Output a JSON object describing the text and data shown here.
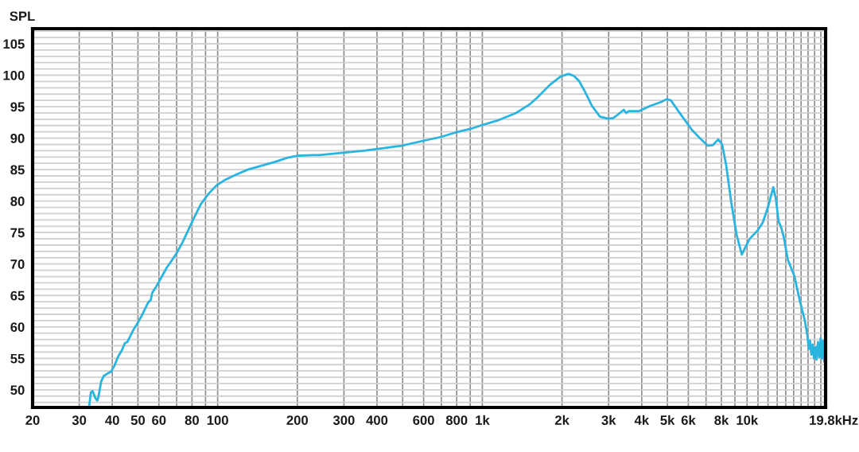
{
  "chart_data": {
    "type": "line",
    "ylabel": "SPL",
    "xlabel": "Hz",
    "log": "x",
    "grid": true,
    "xlim": [
      20,
      19800
    ],
    "ylim": [
      47.2,
      107.4
    ],
    "xticks": [
      20,
      30,
      40,
      50,
      60,
      {
        "value": 70,
        "label": null
      },
      80,
      {
        "value": 90,
        "label": null
      },
      100,
      200,
      300,
      400,
      {
        "value": 500,
        "label": null
      },
      600,
      {
        "value": 700,
        "label": null
      },
      800,
      {
        "value": 900,
        "label": null
      },
      {
        "value": 1000,
        "label": "1k"
      },
      {
        "value": 2000,
        "label": "2k"
      },
      {
        "value": 3000,
        "label": "3k"
      },
      {
        "value": 4000,
        "label": "4k"
      },
      {
        "value": 5000,
        "label": "5k"
      },
      {
        "value": 6000,
        "label": "6k"
      },
      {
        "value": 7000,
        "label": null
      },
      {
        "value": 8000,
        "label": "8k"
      },
      {
        "value": 9000,
        "label": null
      },
      {
        "value": 10000,
        "label": "10k"
      },
      {
        "value": 11000,
        "label": null
      },
      {
        "value": 12000,
        "label": null
      },
      {
        "value": 13000,
        "label": null
      },
      {
        "value": 14000,
        "label": null
      },
      {
        "value": 15000,
        "label": null
      },
      {
        "value": 16000,
        "label": null
      },
      {
        "value": 17000,
        "label": null
      },
      {
        "value": 18000,
        "label": null
      },
      {
        "value": 19000,
        "label": null
      },
      {
        "value": 19800,
        "label": "19.8k"
      }
    ],
    "yticks": [
      {
        "value": 48,
        "label": null
      },
      {
        "value": 49,
        "label": null
      },
      50,
      {
        "value": 51,
        "label": null
      },
      {
        "value": 52,
        "label": null
      },
      {
        "value": 53,
        "label": null
      },
      {
        "value": 54,
        "label": null
      },
      55,
      {
        "value": 56,
        "label": null
      },
      {
        "value": 57,
        "label": null
      },
      {
        "value": 58,
        "label": null
      },
      {
        "value": 59,
        "label": null
      },
      60,
      {
        "value": 61,
        "label": null
      },
      {
        "value": 62,
        "label": null
      },
      {
        "value": 63,
        "label": null
      },
      {
        "value": 64,
        "label": null
      },
      65,
      {
        "value": 66,
        "label": null
      },
      {
        "value": 67,
        "label": null
      },
      {
        "value": 68,
        "label": null
      },
      {
        "value": 69,
        "label": null
      },
      70,
      {
        "value": 71,
        "label": null
      },
      {
        "value": 72,
        "label": null
      },
      {
        "value": 73,
        "label": null
      },
      {
        "value": 74,
        "label": null
      },
      75,
      {
        "value": 76,
        "label": null
      },
      {
        "value": 77,
        "label": null
      },
      {
        "value": 78,
        "label": null
      },
      {
        "value": 79,
        "label": null
      },
      80,
      {
        "value": 81,
        "label": null
      },
      {
        "value": 82,
        "label": null
      },
      {
        "value": 83,
        "label": null
      },
      {
        "value": 84,
        "label": null
      },
      85,
      {
        "value": 86,
        "label": null
      },
      {
        "value": 87,
        "label": null
      },
      {
        "value": 88,
        "label": null
      },
      {
        "value": 89,
        "label": null
      },
      90,
      {
        "value": 91,
        "label": null
      },
      {
        "value": 92,
        "label": null
      },
      {
        "value": 93,
        "label": null
      },
      {
        "value": 94,
        "label": null
      },
      95,
      {
        "value": 96,
        "label": null
      },
      {
        "value": 97,
        "label": null
      },
      {
        "value": 98,
        "label": null
      },
      {
        "value": 99,
        "label": null
      },
      100,
      {
        "value": 101,
        "label": null
      },
      {
        "value": 102,
        "label": null
      },
      {
        "value": 103,
        "label": null
      },
      {
        "value": 104,
        "label": null
      },
      105,
      {
        "value": 106,
        "label": null
      },
      {
        "value": 107,
        "label": null
      }
    ],
    "x": [
      32.7,
      33.2,
      33.7,
      34.5,
      35.1,
      35.5,
      36.3,
      37.1,
      38.4,
      39.6,
      40.7,
      42.1,
      43.5,
      44.6,
      45.6,
      46.6,
      48.3,
      50,
      51.7,
      53.5,
      54.7,
      55.9,
      56.6,
      58.6,
      60.6,
      64.2,
      67.2,
      70.4,
      73.6,
      77.1,
      80.7,
      86.4,
      92.6,
      99.1,
      106,
      116,
      130,
      146,
      164,
      184,
      201,
      231,
      242,
      299,
      356,
      402,
      496,
      602,
      699,
      792,
      908,
      1002,
      1141,
      1340,
      1502,
      1608,
      1803,
      1975,
      2115,
      2214,
      2318,
      2426,
      2597,
      2782,
      2980,
      3119,
      3265,
      3418,
      3497,
      3577,
      3920,
      4295,
      4706,
      4981,
      5155,
      5521,
      6190,
      6628,
      7099,
      7432,
      7780,
      8051,
      8331,
      8721,
      9127,
      9553,
      9886,
      10230,
      10955,
      11470,
      12007,
      12566,
      12853,
      13151,
      13458,
      13770,
      14251,
      15087,
      15795,
      16529,
      16900,
      17100,
      17300,
      17500,
      17700,
      17900,
      18112,
      18300,
      18533,
      18750,
      18960,
      19150,
      19350,
      19550,
      19700,
      19800
    ],
    "series": [
      {
        "color": "#2ab4e0",
        "values": [
          47.3,
          49.6,
          49.8,
          48.7,
          48.3,
          49.0,
          51.3,
          52.2,
          52.6,
          52.9,
          53.8,
          55.3,
          56.3,
          57.4,
          57.6,
          58.4,
          59.7,
          60.7,
          61.8,
          63.1,
          63.9,
          64.3,
          65.4,
          66.4,
          67.5,
          69.4,
          70.6,
          71.9,
          73.4,
          75.2,
          77.0,
          79.5,
          81.2,
          82.5,
          83.3,
          84.1,
          85.0,
          85.6,
          86.2,
          86.9,
          87.2,
          87.3,
          87.3,
          87.7,
          88.0,
          88.3,
          88.8,
          89.6,
          90.2,
          90.9,
          91.5,
          92.1,
          92.8,
          94.0,
          95.3,
          96.4,
          98.5,
          99.8,
          100.2,
          99.9,
          99.1,
          97.6,
          95.1,
          93.4,
          93.1,
          93.2,
          93.8,
          94.5,
          94.0,
          94.3,
          94.3,
          95.1,
          95.7,
          96.2,
          96.0,
          94.2,
          91.3,
          90.0,
          88.8,
          88.9,
          89.8,
          89.0,
          85.8,
          79.7,
          74.7,
          71.5,
          72.8,
          74.0,
          75.3,
          76.6,
          79.1,
          82.2,
          80.3,
          76.8,
          75.8,
          74.2,
          70.7,
          68.1,
          64.3,
          61.0,
          58.6,
          56.5,
          57.8,
          55.6,
          57.2,
          55.0,
          56.8,
          54.8,
          57.6,
          55.2,
          58.2,
          55.0,
          57.8,
          54.5,
          57.9,
          55.0
        ]
      }
    ]
  }
}
